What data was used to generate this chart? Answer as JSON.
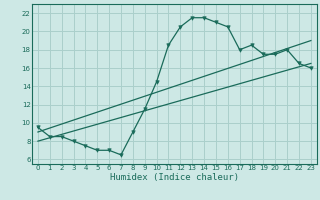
{
  "xlabel": "Humidex (Indice chaleur)",
  "bg_color": "#cde8e5",
  "grid_color": "#aacfcb",
  "line_color": "#1a6b5a",
  "xlim": [
    -0.5,
    23.5
  ],
  "ylim": [
    5.5,
    23.0
  ],
  "xticks": [
    0,
    1,
    2,
    3,
    4,
    5,
    6,
    7,
    8,
    9,
    10,
    11,
    12,
    13,
    14,
    15,
    16,
    17,
    18,
    19,
    20,
    21,
    22,
    23
  ],
  "yticks": [
    6,
    8,
    10,
    12,
    14,
    16,
    18,
    20,
    22
  ],
  "curve_x": [
    0,
    1,
    2,
    3,
    4,
    5,
    6,
    7,
    8,
    9,
    10,
    11,
    12,
    13,
    14,
    15,
    16,
    17,
    18,
    19,
    20,
    21,
    22,
    23
  ],
  "curve_y": [
    9.5,
    8.5,
    8.5,
    8.0,
    7.5,
    7.0,
    7.0,
    6.5,
    9.0,
    11.5,
    14.5,
    18.5,
    20.5,
    21.5,
    21.5,
    21.0,
    20.5,
    18.0,
    18.5,
    17.5,
    17.5,
    18.0,
    16.5,
    16.0
  ],
  "line1_x": [
    0,
    23
  ],
  "line1_y": [
    9.0,
    19.0
  ],
  "line2_x": [
    0,
    23
  ],
  "line2_y": [
    8.0,
    16.5
  ],
  "marker_style": "v",
  "marker_size": 2.5,
  "line_width": 0.9,
  "tick_fontsize": 5.0,
  "xlabel_fontsize": 6.5
}
